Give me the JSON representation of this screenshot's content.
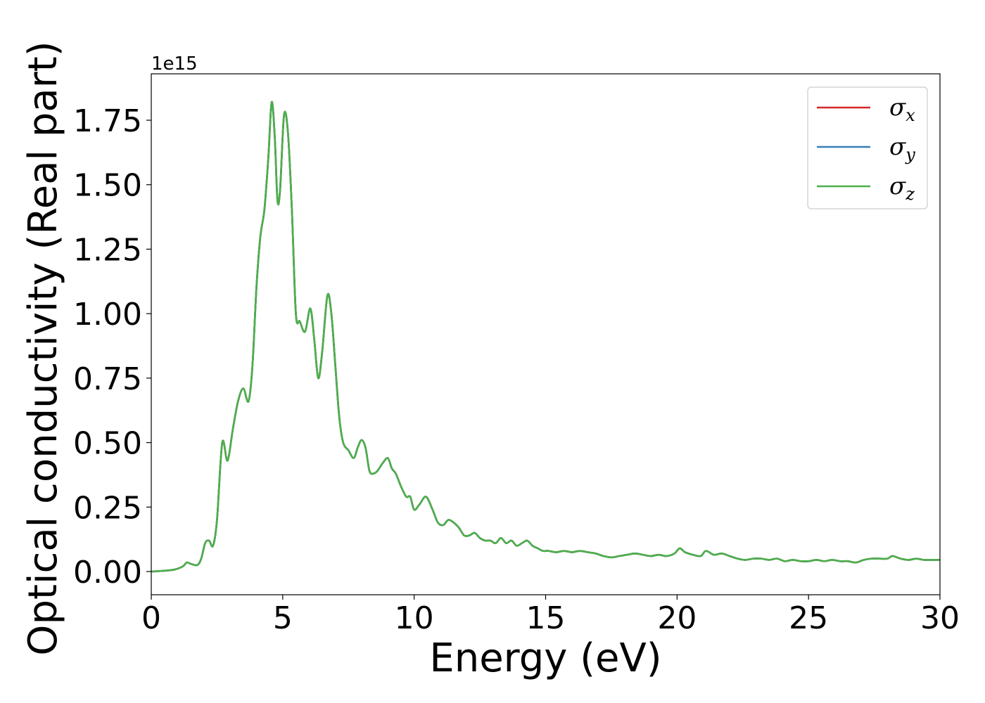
{
  "chart_data": {
    "type": "line",
    "xlabel": "Energy (eV)",
    "ylabel": "Optical conductivity (Real part)",
    "y_offset_label": "1e15",
    "xlim": [
      0,
      30
    ],
    "ylim": [
      -0.09,
      1.93
    ],
    "x_ticks": [
      0,
      5,
      10,
      15,
      20,
      25,
      30
    ],
    "x_tick_labels": [
      "0",
      "5",
      "10",
      "15",
      "20",
      "25",
      "30"
    ],
    "y_ticks": [
      0.0,
      0.25,
      0.5,
      0.75,
      1.0,
      1.25,
      1.5,
      1.75
    ],
    "y_tick_labels": [
      "0.00",
      "0.25",
      "0.50",
      "0.75",
      "1.00",
      "1.25",
      "1.50",
      "1.75"
    ],
    "grid": false,
    "legend_position": "top-right",
    "x": [
      0,
      0.5,
      0.9,
      1.2,
      1.35,
      1.5,
      1.75,
      1.9,
      2.05,
      2.2,
      2.35,
      2.5,
      2.7,
      2.9,
      3.1,
      3.3,
      3.5,
      3.7,
      3.85,
      4.0,
      4.15,
      4.3,
      4.45,
      4.58,
      4.7,
      4.8,
      4.9,
      5.05,
      5.2,
      5.35,
      5.5,
      5.65,
      5.85,
      6.05,
      6.2,
      6.35,
      6.5,
      6.7,
      6.85,
      7.0,
      7.15,
      7.3,
      7.5,
      7.7,
      7.85,
      8.0,
      8.15,
      8.3,
      8.45,
      8.6,
      8.8,
      9.0,
      9.15,
      9.3,
      9.5,
      9.7,
      9.85,
      10.0,
      10.2,
      10.45,
      10.7,
      10.9,
      11.1,
      11.3,
      11.5,
      11.7,
      11.9,
      12.1,
      12.3,
      12.5,
      12.7,
      12.9,
      13.1,
      13.3,
      13.5,
      13.7,
      13.9,
      14.1,
      14.3,
      14.5,
      14.7,
      14.9,
      15.1,
      15.4,
      15.7,
      16.0,
      16.3,
      16.6,
      16.9,
      17.2,
      17.5,
      17.8,
      18.1,
      18.4,
      18.7,
      19.0,
      19.3,
      19.6,
      19.9,
      20.1,
      20.3,
      20.6,
      20.9,
      21.1,
      21.4,
      21.7,
      22.0,
      22.3,
      22.6,
      22.9,
      23.2,
      23.5,
      23.8,
      24.1,
      24.4,
      24.7,
      25.0,
      25.3,
      25.6,
      25.9,
      26.2,
      26.5,
      26.8,
      27.1,
      27.4,
      27.7,
      28.0,
      28.2,
      28.5,
      28.8,
      29.1,
      29.4,
      29.7,
      30.0
    ],
    "series": [
      {
        "name": "σ",
        "subscript": "x",
        "color": "#d62728",
        "values": [
          0.0,
          0.003,
          0.008,
          0.02,
          0.035,
          0.03,
          0.025,
          0.05,
          0.11,
          0.12,
          0.1,
          0.2,
          0.5,
          0.43,
          0.55,
          0.66,
          0.71,
          0.66,
          0.8,
          1.1,
          1.3,
          1.4,
          1.6,
          1.82,
          1.68,
          1.44,
          1.48,
          1.77,
          1.7,
          1.4,
          1.0,
          0.97,
          0.93,
          1.02,
          0.9,
          0.75,
          0.85,
          1.07,
          1.0,
          0.8,
          0.6,
          0.5,
          0.47,
          0.44,
          0.48,
          0.51,
          0.48,
          0.39,
          0.38,
          0.39,
          0.42,
          0.44,
          0.4,
          0.38,
          0.33,
          0.29,
          0.29,
          0.24,
          0.26,
          0.29,
          0.24,
          0.19,
          0.18,
          0.2,
          0.19,
          0.17,
          0.14,
          0.14,
          0.15,
          0.13,
          0.12,
          0.12,
          0.11,
          0.13,
          0.11,
          0.12,
          0.1,
          0.11,
          0.12,
          0.1,
          0.09,
          0.08,
          0.08,
          0.075,
          0.08,
          0.075,
          0.08,
          0.075,
          0.07,
          0.06,
          0.055,
          0.06,
          0.065,
          0.07,
          0.065,
          0.06,
          0.065,
          0.06,
          0.07,
          0.09,
          0.075,
          0.065,
          0.06,
          0.08,
          0.065,
          0.07,
          0.06,
          0.05,
          0.045,
          0.05,
          0.05,
          0.045,
          0.05,
          0.04,
          0.045,
          0.04,
          0.04,
          0.045,
          0.04,
          0.045,
          0.04,
          0.04,
          0.035,
          0.045,
          0.05,
          0.05,
          0.05,
          0.06,
          0.05,
          0.045,
          0.05,
          0.045,
          0.045,
          0.045
        ]
      },
      {
        "name": "σ",
        "subscript": "y",
        "color": "#377eb8",
        "values": [
          0.0,
          0.003,
          0.008,
          0.02,
          0.035,
          0.03,
          0.025,
          0.05,
          0.11,
          0.12,
          0.1,
          0.2,
          0.5,
          0.43,
          0.55,
          0.66,
          0.71,
          0.66,
          0.8,
          1.1,
          1.3,
          1.4,
          1.6,
          1.82,
          1.68,
          1.44,
          1.48,
          1.77,
          1.7,
          1.4,
          1.0,
          0.97,
          0.93,
          1.02,
          0.9,
          0.75,
          0.85,
          1.07,
          1.0,
          0.8,
          0.6,
          0.5,
          0.47,
          0.44,
          0.48,
          0.51,
          0.48,
          0.39,
          0.38,
          0.39,
          0.42,
          0.44,
          0.4,
          0.38,
          0.33,
          0.29,
          0.29,
          0.24,
          0.26,
          0.29,
          0.24,
          0.19,
          0.18,
          0.2,
          0.19,
          0.17,
          0.14,
          0.14,
          0.15,
          0.13,
          0.12,
          0.12,
          0.11,
          0.13,
          0.11,
          0.12,
          0.1,
          0.11,
          0.12,
          0.1,
          0.09,
          0.08,
          0.08,
          0.075,
          0.08,
          0.075,
          0.08,
          0.075,
          0.07,
          0.06,
          0.055,
          0.06,
          0.065,
          0.07,
          0.065,
          0.06,
          0.065,
          0.06,
          0.07,
          0.09,
          0.075,
          0.065,
          0.06,
          0.08,
          0.065,
          0.07,
          0.06,
          0.05,
          0.045,
          0.05,
          0.05,
          0.045,
          0.05,
          0.04,
          0.045,
          0.04,
          0.04,
          0.045,
          0.04,
          0.045,
          0.04,
          0.04,
          0.035,
          0.045,
          0.05,
          0.05,
          0.05,
          0.06,
          0.05,
          0.045,
          0.05,
          0.045,
          0.045,
          0.045
        ]
      },
      {
        "name": "σ",
        "subscript": "z",
        "color": "#4daf4a",
        "values": [
          0.0,
          0.003,
          0.008,
          0.02,
          0.035,
          0.03,
          0.025,
          0.05,
          0.11,
          0.12,
          0.1,
          0.2,
          0.5,
          0.43,
          0.55,
          0.66,
          0.71,
          0.66,
          0.8,
          1.1,
          1.3,
          1.4,
          1.6,
          1.82,
          1.68,
          1.44,
          1.48,
          1.77,
          1.7,
          1.4,
          1.0,
          0.97,
          0.93,
          1.02,
          0.9,
          0.75,
          0.85,
          1.07,
          1.0,
          0.8,
          0.6,
          0.5,
          0.47,
          0.44,
          0.48,
          0.51,
          0.48,
          0.39,
          0.38,
          0.39,
          0.42,
          0.44,
          0.4,
          0.38,
          0.33,
          0.29,
          0.29,
          0.24,
          0.26,
          0.29,
          0.24,
          0.19,
          0.18,
          0.2,
          0.19,
          0.17,
          0.14,
          0.14,
          0.15,
          0.13,
          0.12,
          0.12,
          0.11,
          0.13,
          0.11,
          0.12,
          0.1,
          0.11,
          0.12,
          0.1,
          0.09,
          0.08,
          0.08,
          0.075,
          0.08,
          0.075,
          0.08,
          0.075,
          0.07,
          0.06,
          0.055,
          0.06,
          0.065,
          0.07,
          0.065,
          0.06,
          0.065,
          0.06,
          0.07,
          0.09,
          0.075,
          0.065,
          0.06,
          0.08,
          0.065,
          0.07,
          0.06,
          0.05,
          0.045,
          0.05,
          0.05,
          0.045,
          0.05,
          0.04,
          0.045,
          0.04,
          0.04,
          0.045,
          0.04,
          0.045,
          0.04,
          0.04,
          0.035,
          0.045,
          0.05,
          0.05,
          0.05,
          0.06,
          0.05,
          0.045,
          0.05,
          0.045,
          0.045,
          0.045
        ]
      }
    ]
  }
}
